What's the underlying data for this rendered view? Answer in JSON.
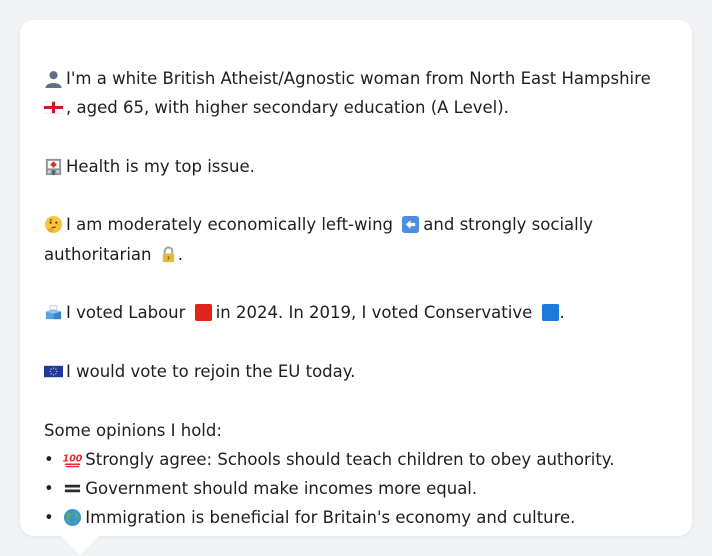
{
  "profile": {
    "intro_line1": "I'm a white British Atheist/Agnostic woman from North East Hampshire",
    "intro_line2": ", aged 65, with higher secondary education (A Level).",
    "health": "Health is my top issue.",
    "econ_a": "I am moderately economically left-wing",
    "econ_b": "and strongly socially",
    "econ_c": "authoritarian",
    "econ_end": ".",
    "vote_a": "I voted Labour",
    "vote_b": "in 2024. In 2019, I voted Conservative",
    "vote_end": ".",
    "eu": "I would vote to rejoin the EU today.",
    "opinions_header": "Some opinions I hold:",
    "opinions": [
      {
        "icon": "hundred-points-icon",
        "text": "Strongly agree: Schools should teach children to obey authority."
      },
      {
        "icon": "equals-icon",
        "text": "Government should make incomes more equal."
      },
      {
        "icon": "globe-icon",
        "text": "Immigration is beneficial for Britain's economy and culture."
      }
    ],
    "bullet": "•",
    "colors": {
      "labour": "#e0241e",
      "conservative": "#1e7ad8",
      "card": "#ffffff",
      "background": "#f1f2f4"
    }
  }
}
